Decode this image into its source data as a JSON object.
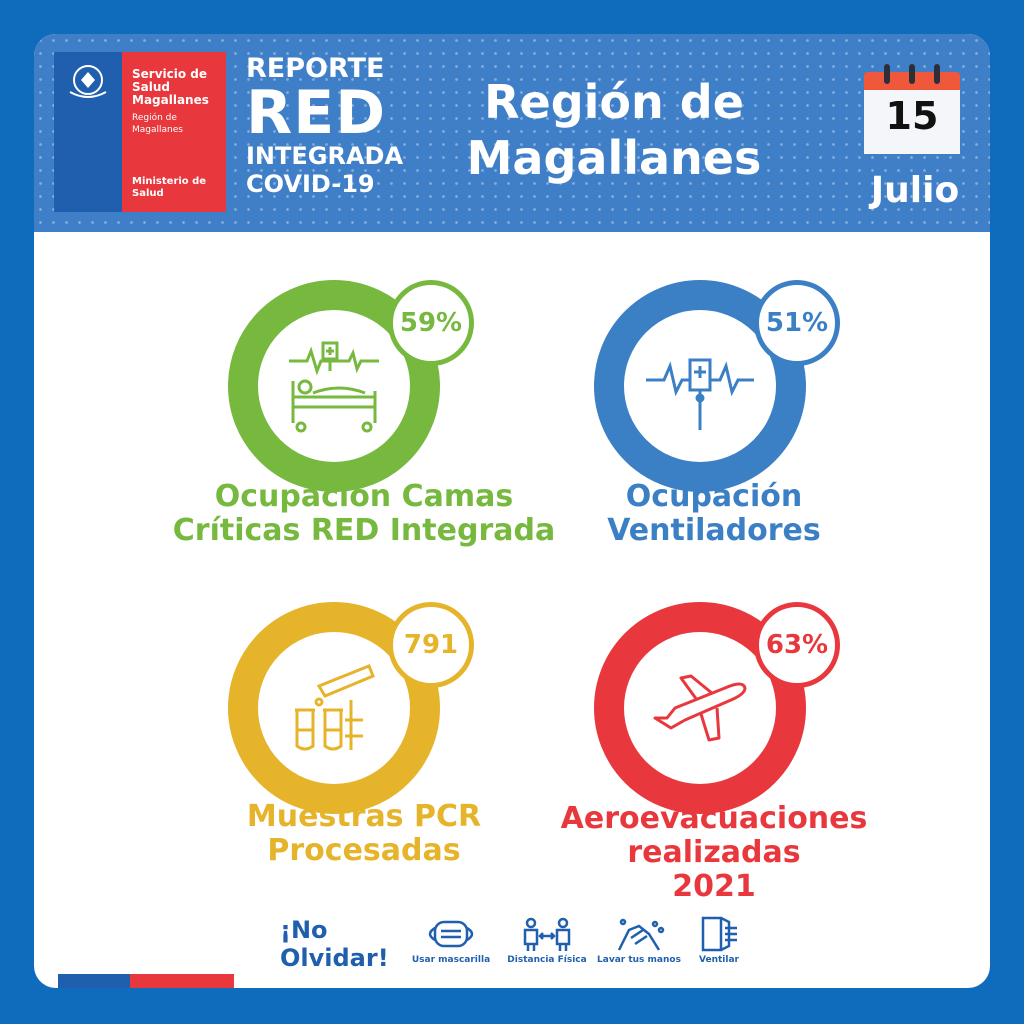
{
  "header": {
    "org_line1": "Servicio de Salud Magallanes",
    "org_line2": "Región de Magallanes",
    "org_line3": "Ministerio de Salud",
    "report_line1": "REPORTE",
    "report_line2": "RED",
    "report_line3": "INTEGRADA",
    "report_line4": "COVID-19",
    "region_line1": "Región de",
    "region_line2": "Magallanes",
    "date_day": "15",
    "date_month": "Julio"
  },
  "stats": [
    {
      "value": "59%",
      "label_line1": "Ocupación Camas",
      "label_line2": "Críticas RED Integrada",
      "icon": "hospital-bed-icon",
      "color": "#77b83f"
    },
    {
      "value": "51%",
      "label_line1": "Ocupación",
      "label_line2": "Ventiladores",
      "icon": "ventilator-icon",
      "color": "#3b7fc4"
    },
    {
      "value": "791",
      "label_line1": "Muestras PCR",
      "label_line2": "Procesadas",
      "icon": "test-tubes-icon",
      "color": "#e6b42a"
    },
    {
      "value": "63%",
      "label_line1": "Aeroevacuaciones",
      "label_line2": "realizadas",
      "label_line3": "2021",
      "icon": "airplane-icon",
      "color": "#e8383d"
    }
  ],
  "footer": {
    "title_line1": "¡No",
    "title_line2": "Olvidar!",
    "items": [
      {
        "label": "Usar mascarilla",
        "icon": "mask-icon"
      },
      {
        "label": "Distancia Física",
        "icon": "distance-icon"
      },
      {
        "label": "Lavar tus manos",
        "icon": "hand-wash-icon"
      },
      {
        "label": "Ventilar",
        "icon": "window-icon"
      }
    ]
  }
}
